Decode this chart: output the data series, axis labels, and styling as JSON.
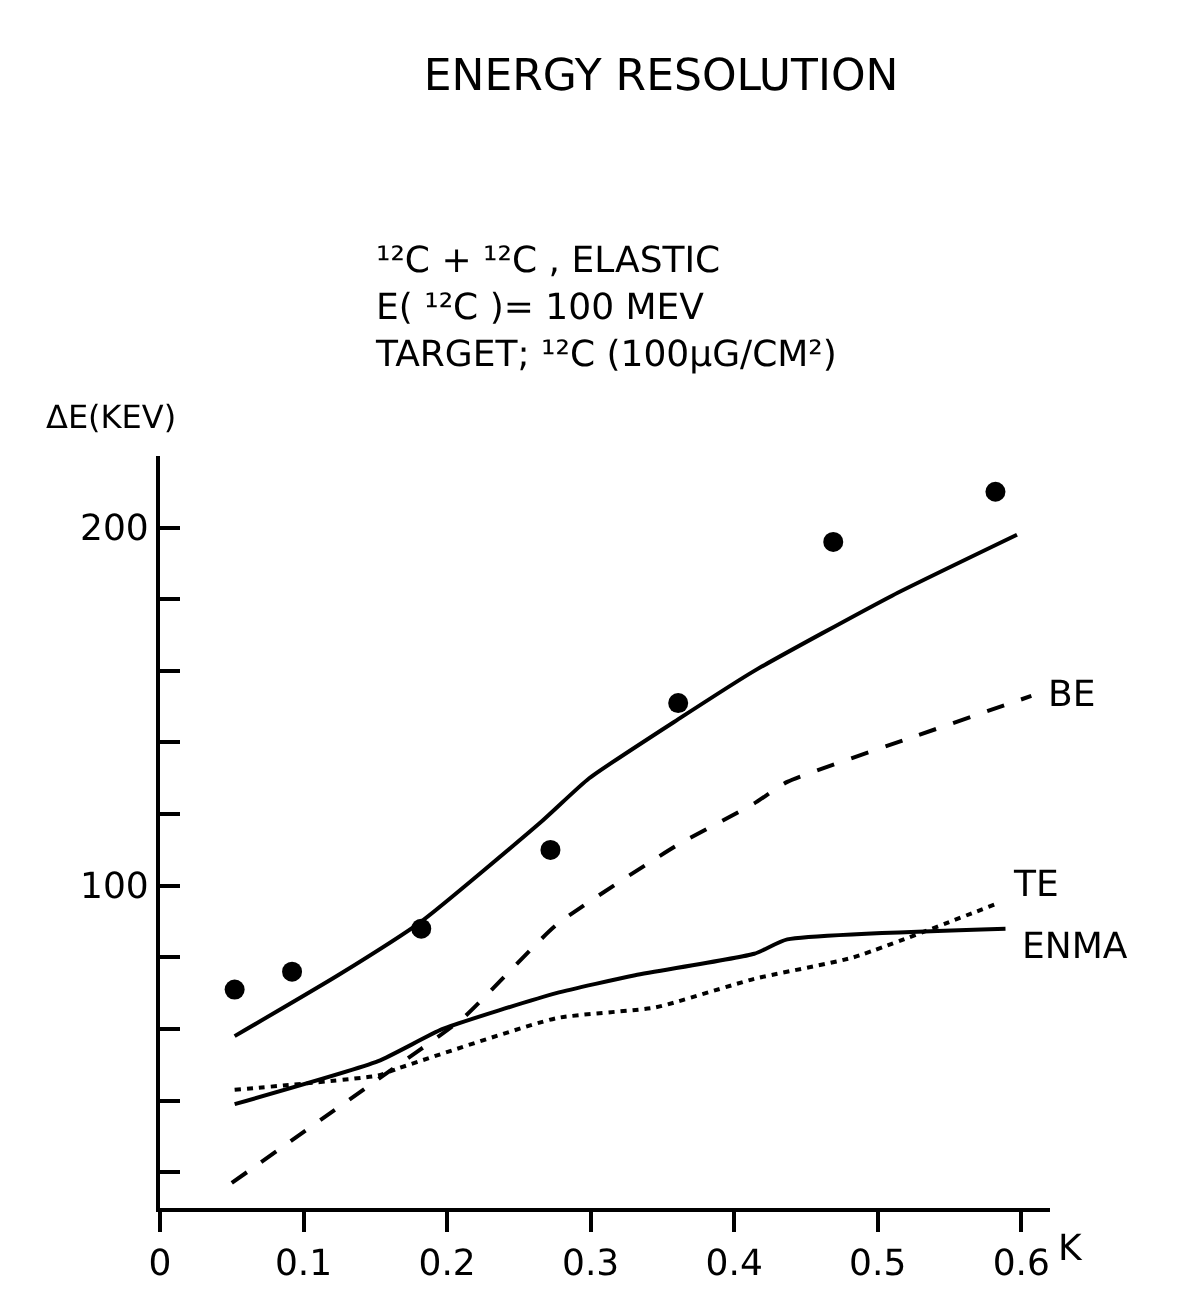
{
  "chart_data": {
    "type": "line",
    "title": "ENERGY RESOLUTION",
    "subtitle": "¹²C + ¹²C , ELASTIC\nE( ¹²C )= 100 MEV\nTARGET; ¹²C (100μG/CM²)",
    "xlabel": "K",
    "ylabel": "ΔE(KEV)",
    "xlim": [
      0,
      0.62
    ],
    "xticks": [
      0,
      0.1,
      0.2,
      0.3,
      0.4,
      0.5,
      0.6
    ],
    "ylim": [
      10,
      220
    ],
    "yticks": [
      {
        "value": 20,
        "label": null
      },
      {
        "value": 40,
        "label": null
      },
      {
        "value": 60,
        "label": null
      },
      {
        "value": 80,
        "label": null
      },
      100,
      {
        "value": 120,
        "label": null
      },
      {
        "value": 140,
        "label": null
      },
      {
        "value": 160,
        "label": null
      },
      {
        "value": 180,
        "label": null
      },
      200
    ],
    "series": [
      {
        "type": "scatter",
        "marker": "circle",
        "color": "#000000",
        "x": [
          0.052,
          0.092,
          0.182,
          0.272,
          0.361,
          0.469,
          0.582
        ],
        "values": [
          71,
          76,
          88,
          110,
          151,
          196,
          210
        ]
      },
      {
        "line_style": "solid",
        "color": "#000000",
        "x": [
          0.052,
          0.124,
          0.182,
          0.266,
          0.299,
          0.363,
          0.414,
          0.51,
          0.597
        ],
        "values": [
          58,
          75,
          90,
          118,
          130,
          147,
          160,
          181,
          198
        ]
      },
      {
        "name": "BE",
        "line_style": "dashed",
        "color": "#000000",
        "x": [
          0.05,
          0.152,
          0.211,
          0.276,
          0.359,
          0.414,
          0.437,
          0.528,
          0.607
        ],
        "values": [
          17,
          46,
          63,
          89,
          111,
          123,
          129,
          142,
          153
        ]
      },
      {
        "name": "TE",
        "line_style": "dotted",
        "color": "#000000",
        "x": [
          0.052,
          0.152,
          0.166,
          0.276,
          0.345,
          0.414,
          0.483,
          0.583
        ],
        "values": [
          43,
          47,
          49,
          63,
          66,
          74,
          80,
          95
        ]
      },
      {
        "name": "ENMA",
        "line_style": "solid",
        "color": "#000000",
        "x": [
          0.052,
          0.152,
          0.197,
          0.276,
          0.331,
          0.414,
          0.437,
          0.589
        ],
        "values": [
          39,
          51,
          60,
          70,
          75,
          81,
          85,
          88
        ]
      }
    ]
  }
}
